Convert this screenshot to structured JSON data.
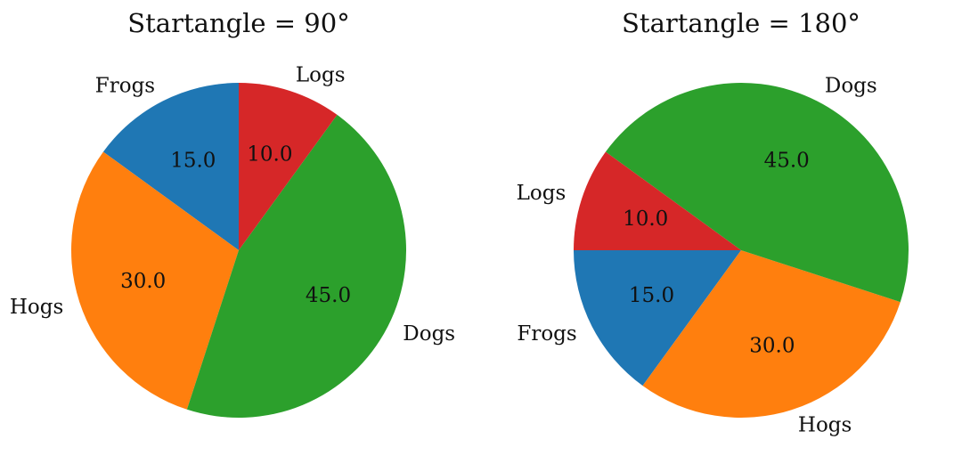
{
  "chart_data": [
    {
      "type": "pie",
      "title": "Startangle = 90°",
      "startangle": 90,
      "direction": "counterclockwise",
      "categories": [
        "Frogs",
        "Hogs",
        "Dogs",
        "Logs"
      ],
      "values": [
        15.0,
        30.0,
        45.0,
        10.0
      ],
      "value_labels": [
        "15.0",
        "30.0",
        "45.0",
        "10.0"
      ],
      "colors": [
        "#1f77b4",
        "#ff7f0e",
        "#2ca02c",
        "#d62728"
      ]
    },
    {
      "type": "pie",
      "title": "Startangle = 180°",
      "startangle": 180,
      "direction": "counterclockwise",
      "categories": [
        "Frogs",
        "Hogs",
        "Dogs",
        "Logs"
      ],
      "values": [
        15.0,
        30.0,
        45.0,
        10.0
      ],
      "value_labels": [
        "15.0",
        "30.0",
        "45.0",
        "10.0"
      ],
      "colors": [
        "#1f77b4",
        "#ff7f0e",
        "#2ca02c",
        "#d62728"
      ]
    }
  ]
}
